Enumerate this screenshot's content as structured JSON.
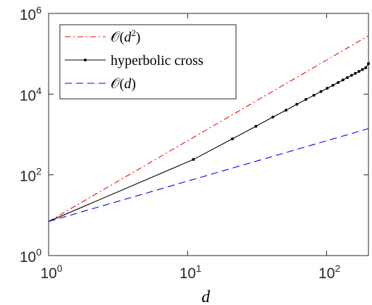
{
  "chart_data": {
    "type": "line",
    "title": "",
    "xlabel": "d",
    "ylabel": "",
    "xscale": "log",
    "yscale": "log",
    "xlim": [
      1,
      200
    ],
    "ylim": [
      1,
      1000000
    ],
    "grid": false,
    "legend_position": "top-left",
    "x_ticks": [
      {
        "base": "10",
        "exp": "0",
        "value": 1
      },
      {
        "base": "10",
        "exp": "1",
        "value": 10
      },
      {
        "base": "10",
        "exp": "2",
        "value": 100
      }
    ],
    "y_ticks": [
      {
        "base": "10",
        "exp": "0",
        "value": 1
      },
      {
        "base": "10",
        "exp": "2",
        "value": 100
      },
      {
        "base": "10",
        "exp": "4",
        "value": 10000
      },
      {
        "base": "10",
        "exp": "6",
        "value": 1000000
      }
    ],
    "series": [
      {
        "name": "𝒪(d²)",
        "label_main": "𝒪(",
        "label_var": "d",
        "label_sup": "2",
        "label_close": ")",
        "color": "#ff0000",
        "style": "dash-dot",
        "x": [
          1,
          200
        ],
        "y": [
          7,
          280000
        ]
      },
      {
        "name": "hyperbolic cross",
        "label_main": "hyperbolic cross",
        "color": "#000000",
        "style": "solid-dots",
        "x": [
          1,
          11,
          21,
          31,
          41,
          51,
          61,
          71,
          81,
          91,
          101,
          111,
          121,
          131,
          141,
          151,
          161,
          171,
          181,
          191,
          200
        ],
        "y": [
          7,
          240,
          780,
          1600,
          2700,
          4000,
          5600,
          7400,
          9400,
          11600,
          14000,
          16600,
          19400,
          22400,
          25700,
          29100,
          32800,
          36600,
          40700,
          45100,
          57000
        ]
      },
      {
        "name": "𝒪(d)",
        "label_main": "𝒪(",
        "label_var": "d",
        "label_close": ")",
        "color": "#0000ff",
        "style": "dashed",
        "x": [
          1,
          200
        ],
        "y": [
          7,
          1400
        ]
      }
    ]
  }
}
